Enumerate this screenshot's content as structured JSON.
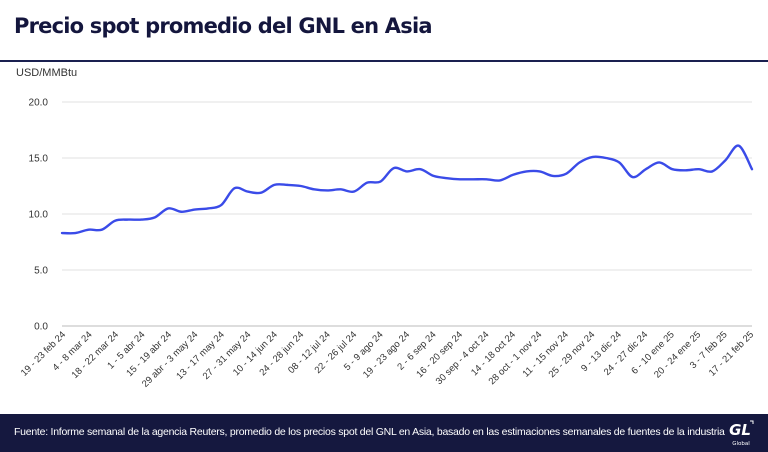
{
  "header": {
    "title": "Precio spot promedio del GNL en Asia",
    "unit_label": "USD/MMBtu"
  },
  "footer": {
    "source": "Fuente: Informe semanal de la agencia Reuters, promedio de los precios spot del GNL en Asia, basado en las estimaciones semanales de fuentes de la industria",
    "logo_text": "GNL Global"
  },
  "colors": {
    "line": "#3a4be8",
    "accent": "#14163d",
    "grid": "#e0e0e0"
  },
  "chart_data": {
    "type": "line",
    "title": "Precio spot promedio del GNL en Asia",
    "ylabel": "USD/MMBtu",
    "xlabel": "",
    "ylim": [
      0,
      20
    ],
    "yticks": [
      "0.0",
      "5.0",
      "10.0",
      "15.0",
      "20.0"
    ],
    "grid": true,
    "x_tick_labels": [
      "19 - 23 feb 24",
      "4 - 8 mar 24",
      "18 - 22 mar 24",
      "1 - 5 abr 24",
      "15 - 19 abr 24",
      "29 abr - 3 may 24",
      "13 - 17 may 24",
      "27 - 31 may 24",
      "10 - 14 jun 24",
      "24 - 28 jun 24",
      "08 - 12 jul 24",
      "22 - 26 jul 24",
      "5 - 9 ago 24",
      "19 - 23 ago 24",
      "2 - 6 sep 24",
      "16 - 20 sep 24",
      "30 sep - 4 oct 24",
      "14 - 18 oct 24",
      "28 oct - 1 nov 24",
      "11 - 15 nov 24",
      "25 - 29 nov 24",
      "9 - 13 dic 24",
      "24 - 27 dic 24",
      "6 - 10 ene 25",
      "20 - 24 ene 25",
      "3 - 7 feb 25",
      "17 - 21 feb 25"
    ],
    "series": [
      {
        "values": [
          8.3,
          8.3,
          8.6,
          8.6,
          9.4,
          9.5,
          9.5,
          9.7,
          10.5,
          10.2,
          10.4,
          10.5,
          10.8,
          12.3,
          12.0,
          11.9,
          12.6,
          12.6,
          12.5,
          12.2,
          12.1,
          12.2,
          12.0,
          12.8,
          12.9,
          14.1,
          13.8,
          14.0,
          13.4,
          13.2,
          13.1,
          13.1,
          13.1,
          13.0,
          13.5,
          13.8,
          13.8,
          13.4,
          13.6,
          14.6,
          15.1,
          15.0,
          14.6,
          13.3,
          14.0,
          14.6,
          14.0,
          13.9,
          14.0,
          13.8,
          14.8,
          16.1,
          14.0
        ]
      }
    ]
  }
}
